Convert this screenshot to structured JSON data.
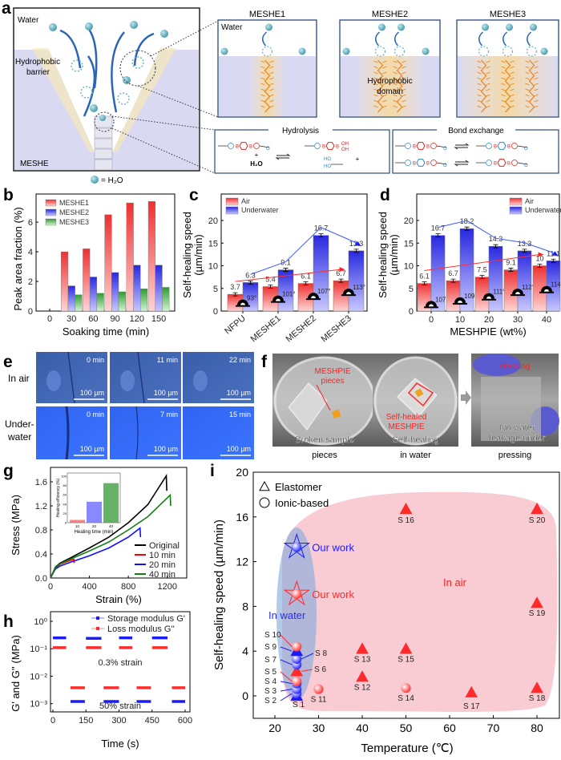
{
  "panel_labels": {
    "a": "a",
    "b": "b",
    "c": "c",
    "d": "d",
    "e": "e",
    "f": "f",
    "g": "g",
    "h": "h",
    "i": "i"
  },
  "panel_a": {
    "water": "Water",
    "barrier_lines": [
      "Hydrophobic",
      "barrier"
    ],
    "meshe": "MESHE",
    "h2o_legend": "= H₂O",
    "zoom_titles": [
      "MESHE1",
      "MESHE2",
      "MESHE3"
    ],
    "zoom_water": "Water",
    "domain_lines": [
      "Hydrophobic",
      "domain"
    ],
    "hydrolysis": "Hydrolysis",
    "bond_exchange": "Bond exchange",
    "plus": "+",
    "h2o": "H₂O",
    "atoms": {
      "B": "B",
      "O": "O",
      "OH": "OH",
      "HO": "HO"
    }
  },
  "panel_e": {
    "rows": [
      "In air",
      "Under-water"
    ],
    "row_lines": [
      [
        "In air"
      ],
      [
        "Under-",
        "water"
      ]
    ],
    "times": [
      [
        "0 min",
        "11 min",
        "22 min"
      ],
      [
        "0 min",
        "7 min",
        "15 min"
      ]
    ],
    "scale": "100 µm"
  },
  "panel_f": {
    "photos": [
      {
        "overlay_red": [
          "MESHPIE",
          "pieces"
        ],
        "overlay_white": [
          "Broken sample"
        ],
        "caption": "pieces"
      },
      {
        "overlay_red": [
          "Self-healed",
          "MESHPIE"
        ],
        "overlay_white": [
          "Self-healing"
        ],
        "caption": "in water"
      },
      {
        "overlay_red": [
          "Pressing"
        ],
        "overlay_white": [
          "No water",
          "leakage under"
        ],
        "caption": "pressing"
      }
    ]
  },
  "chart_data": [
    {
      "panel": "b",
      "type": "bar",
      "categories": [
        0,
        30,
        60,
        90,
        120,
        150
      ],
      "series": [
        {
          "name": "MESHE1",
          "values": [
            null,
            4.0,
            4.2,
            6.5,
            7.3,
            7.4
          ],
          "color": "#e83a3a"
        },
        {
          "name": "MESHE2",
          "values": [
            null,
            1.7,
            2.3,
            2.6,
            3.1,
            3.1
          ],
          "color": "#3a3ae8"
        },
        {
          "name": "MESHE3",
          "values": [
            null,
            1.1,
            1.2,
            1.3,
            1.5,
            1.6
          ],
          "color": "#3a9a3a"
        }
      ],
      "xlabel": "Soaking time (min)",
      "ylabel": "Peak area fraction (%)",
      "yticks": [
        0,
        2,
        4,
        6
      ],
      "ylim": [
        0,
        7.9
      ],
      "legend": "top-left"
    },
    {
      "panel": "c",
      "type": "bar",
      "categories": [
        "NFPU",
        "MESHE1",
        "MESHE2",
        "MESHE3"
      ],
      "series": [
        {
          "name": "Air",
          "values": [
            3.7,
            5.4,
            6.1,
            6.7
          ],
          "color": "#e83a3a"
        },
        {
          "name": "Underwater",
          "values": [
            6.3,
            9.1,
            16.7,
            13.3
          ],
          "color": "#3a3ae8"
        }
      ],
      "contact_angles": [
        "93°",
        "101°",
        "107°",
        "113°"
      ],
      "ylabel_lines": [
        "Self-healing speed",
        "(µm/min)"
      ],
      "yticks": [
        0,
        5,
        10,
        15,
        20
      ],
      "ylim": [
        0,
        25.8
      ],
      "legend": "top-left"
    },
    {
      "panel": "d",
      "type": "bar",
      "categories": [
        0,
        10,
        20,
        30,
        40
      ],
      "series": [
        {
          "name": "Air",
          "values": [
            6.1,
            6.7,
            7.5,
            9.1,
            10
          ],
          "color": "#e83a3a"
        },
        {
          "name": "Underwater",
          "values": [
            16.7,
            18.2,
            14.3,
            13.3,
            11.1
          ],
          "color": "#3a3ae8"
        }
      ],
      "contact_angles": [
        "107°",
        "109°",
        "111°",
        "112°",
        "114°"
      ],
      "xlabel": "MESHPIE (wt%)",
      "ylabel_lines": [
        "Self-healing speed",
        "(µm/min)"
      ],
      "yticks": [
        0,
        5,
        10,
        15,
        20
      ],
      "ylim": [
        0,
        25.8
      ],
      "legend": "top-right"
    },
    {
      "panel": "g",
      "type": "line",
      "series": [
        {
          "name": "Original",
          "color": "#000000",
          "x": [
            0,
            50,
            100,
            200,
            400,
            600,
            800,
            1000,
            1190,
            1195
          ],
          "y": [
            0,
            0.18,
            0.25,
            0.33,
            0.5,
            0.68,
            0.92,
            1.22,
            1.7,
            1.45
          ]
        },
        {
          "name": "10 min",
          "color": "#ff0000",
          "x": [
            0,
            50,
            100,
            180,
            240,
            245
          ],
          "y": [
            0,
            0.17,
            0.23,
            0.28,
            0.31,
            0.25
          ]
        },
        {
          "name": "20 min",
          "color": "#1010ff",
          "x": [
            0,
            50,
            100,
            200,
            400,
            600,
            800,
            920,
            925
          ],
          "y": [
            0,
            0.15,
            0.2,
            0.26,
            0.37,
            0.5,
            0.68,
            0.83,
            0.68
          ]
        },
        {
          "name": "40 min",
          "color": "#108010",
          "x": [
            0,
            50,
            100,
            200,
            400,
            600,
            800,
            1000,
            1230,
            1235
          ],
          "y": [
            0,
            0.17,
            0.24,
            0.31,
            0.45,
            0.6,
            0.8,
            1.02,
            1.38,
            1.2
          ]
        }
      ],
      "xlabel": "Strain (%)",
      "ylabel": "Stress (MPa)",
      "xticks": [
        0,
        400,
        800,
        1200
      ],
      "yticks": [
        "0.0",
        "0.4",
        "0.8",
        "1.2",
        "1.6"
      ],
      "xlim": [
        0,
        1400
      ],
      "ylim": [
        0,
        1.84
      ],
      "legend": "bottom-right",
      "inset": {
        "type": "bar",
        "categories": [
          10,
          20,
          40
        ],
        "values": [
          6,
          45,
          85
        ],
        "colors": [
          "#ff6060",
          "#6a6aff",
          "#40a040"
        ],
        "xlabel": "Healing time (min)",
        "ylabel": "Healing efficiency (%)",
        "yticks": [
          0,
          20,
          40,
          60,
          80,
          100
        ],
        "ylim": [
          0,
          100
        ]
      }
    },
    {
      "panel": "h",
      "type": "scatter",
      "yscale": "log",
      "series": [
        {
          "name": "Storage modulus G'",
          "color": "#1a1aff",
          "segments": [
            [
              0,
              60,
              0.25
            ],
            [
              80,
              145,
              0.0012
            ],
            [
              150,
              220,
              0.24
            ],
            [
              230,
              300,
              0.0012
            ],
            [
              300,
              360,
              0.25
            ],
            [
              380,
              445,
              0.0012
            ],
            [
              450,
              520,
              0.25
            ],
            [
              540,
              600,
              0.0012
            ]
          ]
        },
        {
          "name": "Loss modulus G''",
          "color": "#ff2a2a",
          "segments": [
            [
              0,
              60,
              0.11
            ],
            [
              80,
              145,
              0.0038
            ],
            [
              150,
              220,
              0.11
            ],
            [
              230,
              300,
              0.0038
            ],
            [
              300,
              360,
              0.11
            ],
            [
              380,
              445,
              0.0038
            ],
            [
              450,
              520,
              0.11
            ],
            [
              540,
              600,
              0.0038
            ]
          ]
        }
      ],
      "annotations": [
        "0.3% strain",
        "50% strain"
      ],
      "xlabel": "Time (s)",
      "ylabel": "G' and G'' (MPa)",
      "xticks": [
        0,
        150,
        300,
        450,
        600
      ],
      "xlim": [
        0,
        600
      ],
      "yticks": [
        0,
        -1,
        -2,
        -3
      ],
      "ytick_labels": [
        "10⁰",
        "10⁻¹",
        "10⁻²",
        "10⁻³"
      ],
      "ylim_log10": [
        -3.3,
        0.35
      ],
      "legend": "top-right"
    },
    {
      "panel": "i",
      "type": "scatter",
      "legend": [
        "Elastomer",
        "Ionic-based"
      ],
      "points": [
        {
          "label": "S 1",
          "x": 25,
          "y": 0.0,
          "shape": "triangle",
          "color": "#1a1aff"
        },
        {
          "label": "S 2",
          "x": 25,
          "y": 0.2,
          "shape": "circle",
          "color": "#1a1aff"
        },
        {
          "label": "S 3",
          "x": 25,
          "y": 0.6,
          "shape": "circle",
          "color": "#1a1aff"
        },
        {
          "label": "S 4",
          "x": 25,
          "y": 1.1,
          "shape": "circle",
          "color": "#1a1aff"
        },
        {
          "label": "S 5",
          "x": 25,
          "y": 1.3,
          "shape": "circle",
          "color": "#ff2a2a"
        },
        {
          "label": "S 6",
          "x": 25,
          "y": 2.2,
          "shape": "triangle",
          "color": "#ff2a2a"
        },
        {
          "label": "S 7",
          "x": 25,
          "y": 2.8,
          "shape": "circle",
          "color": "#1a1aff"
        },
        {
          "label": "S 8",
          "x": 25,
          "y": 3.3,
          "shape": "circle",
          "color": "#1a1aff"
        },
        {
          "label": "S 9",
          "x": 25,
          "y": 4.0,
          "shape": "triangle",
          "color": "#1a1aff"
        },
        {
          "label": "S 10",
          "x": 25,
          "y": 4.4,
          "shape": "circle",
          "color": "#ff2a2a"
        },
        {
          "label": "S 11",
          "x": 30,
          "y": 0.6,
          "shape": "circle",
          "color": "#ff2a2a"
        },
        {
          "label": "S 12",
          "x": 40,
          "y": 1.7,
          "shape": "triangle",
          "color": "#ff2a2a"
        },
        {
          "label": "S 13",
          "x": 40,
          "y": 4.2,
          "shape": "triangle",
          "color": "#ff2a2a"
        },
        {
          "label": "S 14",
          "x": 50,
          "y": 0.7,
          "shape": "circle",
          "color": "#ff2a2a"
        },
        {
          "label": "S 15",
          "x": 50,
          "y": 4.2,
          "shape": "triangle",
          "color": "#ff2a2a"
        },
        {
          "label": "S 16",
          "x": 50,
          "y": 16.7,
          "shape": "triangle",
          "color": "#ff2a2a"
        },
        {
          "label": "S 17",
          "x": 65,
          "y": 0.3,
          "shape": "triangle",
          "color": "#ff2a2a"
        },
        {
          "label": "S 18",
          "x": 80,
          "y": 0.7,
          "shape": "triangle",
          "color": "#ff2a2a"
        },
        {
          "label": "S 19",
          "x": 80,
          "y": 8.3,
          "shape": "triangle",
          "color": "#ff2a2a"
        },
        {
          "label": "S 20",
          "x": 80,
          "y": 16.7,
          "shape": "triangle",
          "color": "#ff2a2a"
        }
      ],
      "our_work": [
        {
          "label": "Our work",
          "x": 25,
          "y": 13.3,
          "color": "#1a1aff"
        },
        {
          "label": "Our work",
          "x": 25,
          "y": 9.1,
          "color": "#ff2a2a"
        }
      ],
      "regions": [
        "In water",
        "In air"
      ],
      "xlabel": "Temperature (℃)",
      "ylabel": "Self-healing speed (µm/min)",
      "xticks": [
        20,
        30,
        40,
        50,
        60,
        70,
        80
      ],
      "yticks": [
        0,
        4,
        8,
        12,
        16,
        20
      ],
      "xlim": [
        15,
        85
      ],
      "ylim": [
        -2,
        20
      ]
    }
  ]
}
